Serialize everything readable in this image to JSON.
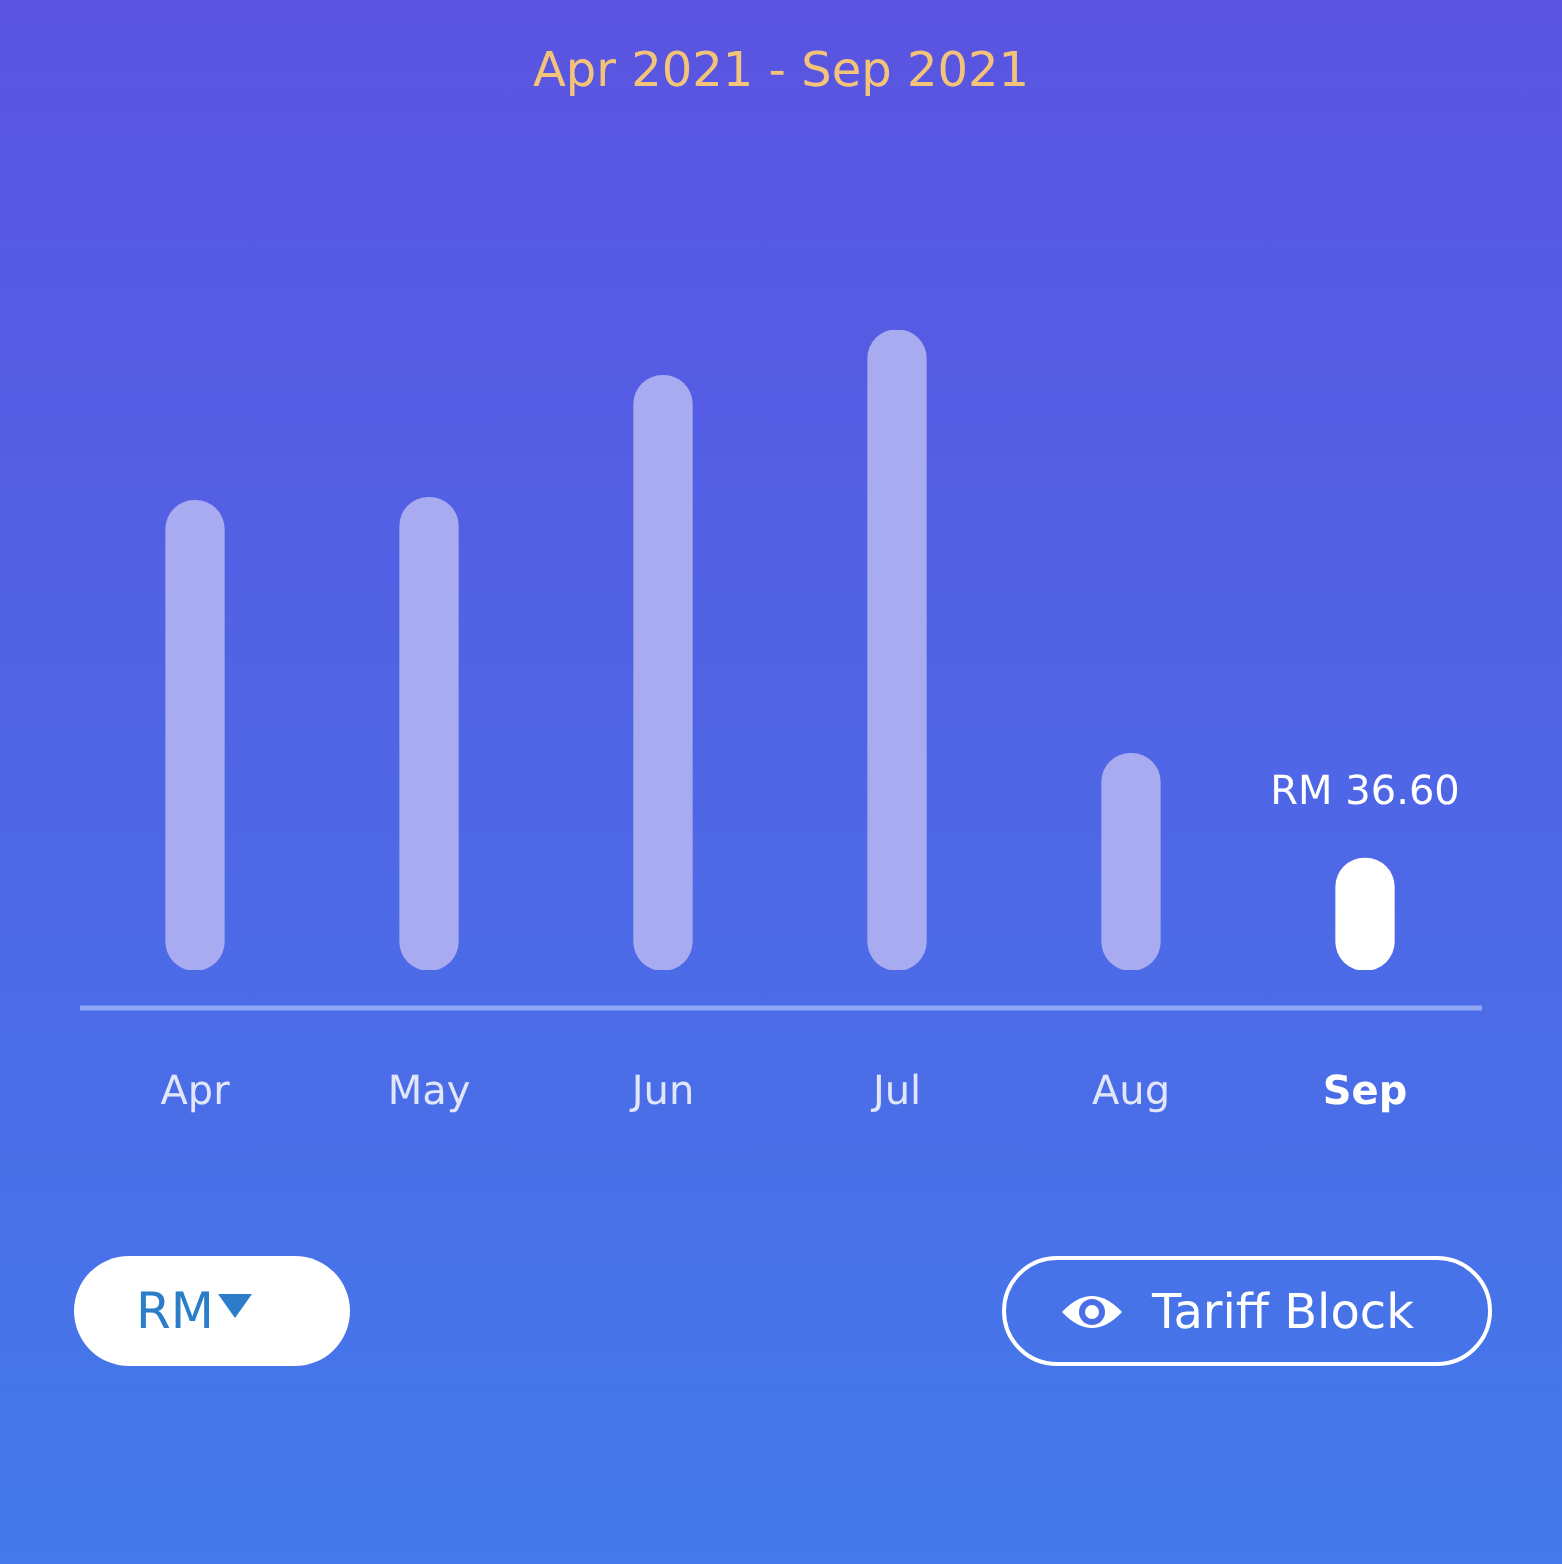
{
  "chart_data": {
    "type": "bar",
    "title": "Apr 2021 - Sep 2021",
    "categories": [
      "Apr",
      "May",
      "Jun",
      "Jul",
      "Aug",
      "Sep"
    ],
    "values": [
      154,
      155,
      195,
      210,
      71,
      36.6
    ],
    "colors": [
      "#a8abf0",
      "#a8abf0",
      "#a8abf0",
      "#a8abf0",
      "#a8abf0",
      "#ffffff"
    ],
    "value_labels": [
      null,
      null,
      null,
      null,
      null,
      "RM 36.60"
    ],
    "annotations": [
      "RM",
      "Tariff Block"
    ],
    "grid": false,
    "legend": false
  }
}
